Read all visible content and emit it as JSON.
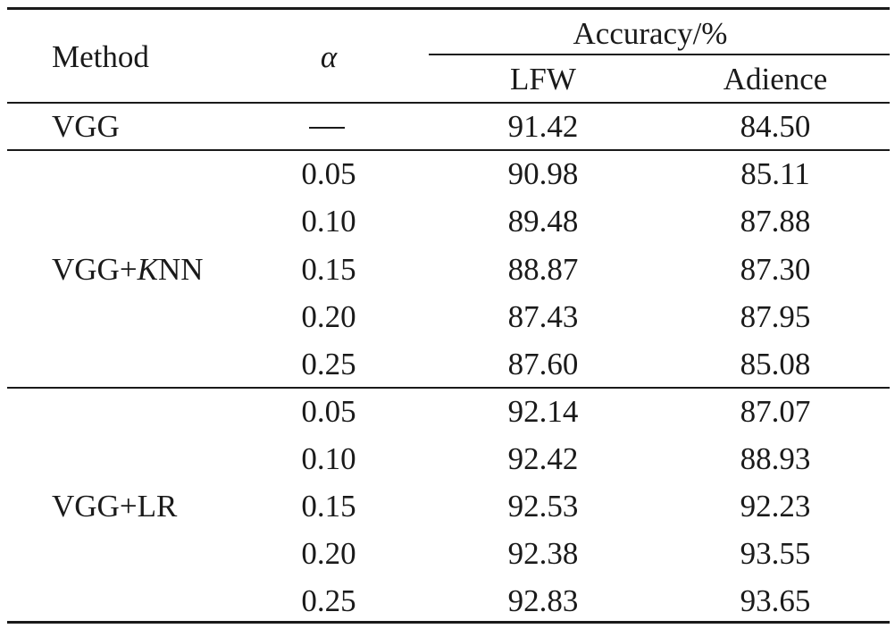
{
  "table": {
    "header": {
      "method": "Method",
      "alpha": "α",
      "accuracy": "Accuracy/%",
      "lfw": "LFW",
      "adience": "Adience"
    },
    "baseline": {
      "method": "VGG",
      "alpha": "—",
      "lfw": "91.42",
      "adience": "84.50"
    },
    "knn": {
      "method_prefix": "VGG+",
      "method_italic": "K",
      "method_suffix": "NN",
      "rows": [
        {
          "alpha": "0.05",
          "lfw": "90.98",
          "adience": "85.11"
        },
        {
          "alpha": "0.10",
          "lfw": "89.48",
          "adience": "87.88"
        },
        {
          "alpha": "0.15",
          "lfw": "88.87",
          "adience": "87.30"
        },
        {
          "alpha": "0.20",
          "lfw": "87.43",
          "adience": "87.95"
        },
        {
          "alpha": "0.25",
          "lfw": "87.60",
          "adience": "85.08"
        }
      ]
    },
    "lr": {
      "method": "VGG+LR",
      "rows": [
        {
          "alpha": "0.05",
          "lfw": "92.14",
          "adience": "87.07"
        },
        {
          "alpha": "0.10",
          "lfw": "92.42",
          "adience": "88.93"
        },
        {
          "alpha": "0.15",
          "lfw": "92.53",
          "adience": "92.23"
        },
        {
          "alpha": "0.20",
          "lfw": "92.38",
          "adience": "93.55"
        },
        {
          "alpha": "0.25",
          "lfw": "92.83",
          "adience": "93.65"
        }
      ]
    }
  }
}
